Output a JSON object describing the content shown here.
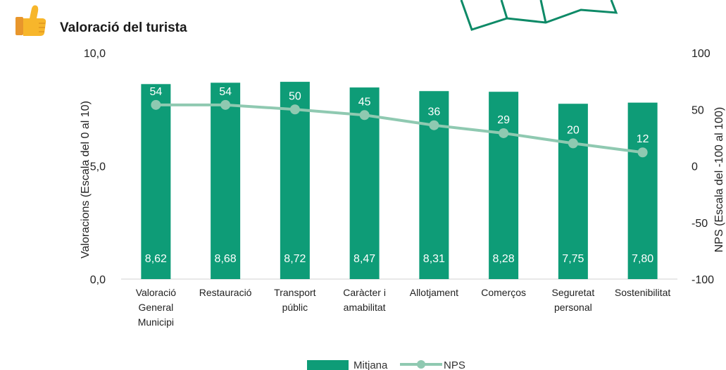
{
  "header": {
    "title": "Valoració del turista",
    "icon": "thumbs-up-icon"
  },
  "colors": {
    "bar": "#0e9c77",
    "line": "#8fc9b1",
    "text": "#222222",
    "map_icon": "#0e8a67"
  },
  "chart_data": {
    "type": "bar",
    "title": "Valoració del turista",
    "categories": [
      [
        "Valoració",
        "General",
        "Municipi"
      ],
      [
        "Restauració"
      ],
      [
        "Transport",
        "públic"
      ],
      [
        "Caràcter i",
        "amabilitat"
      ],
      [
        "Allotjament"
      ],
      [
        "Comerços"
      ],
      [
        "Seguretat",
        "personal"
      ],
      [
        "Sostenibilitat"
      ]
    ],
    "series": [
      {
        "name": "Mitjana",
        "type": "bar",
        "axis": "left",
        "values": [
          8.62,
          8.68,
          8.72,
          8.47,
          8.31,
          8.28,
          7.75,
          7.8
        ],
        "labels": [
          "8,62",
          "8,68",
          "8,72",
          "8,47",
          "8,31",
          "8,28",
          "7,75",
          "7,80"
        ]
      },
      {
        "name": "NPS",
        "type": "line",
        "axis": "right",
        "values": [
          54,
          54,
          50,
          45,
          36,
          29,
          20,
          12
        ],
        "labels": [
          "54",
          "54",
          "50",
          "45",
          "36",
          "29",
          "20",
          "12"
        ]
      }
    ],
    "y_left": {
      "label": "Valoracions (Escala  del 0 al 10)",
      "range": [
        0,
        10
      ],
      "ticks": [
        0,
        5,
        10
      ],
      "tick_labels": [
        "0,0",
        "5,0",
        "10,0"
      ]
    },
    "y_right": {
      "label": "NPS (Escala  del -100 al 100)",
      "range": [
        -100,
        100
      ],
      "ticks": [
        -100,
        -50,
        0,
        50,
        100
      ],
      "tick_labels": [
        "-100",
        "-50",
        "0",
        "50",
        "100"
      ]
    },
    "legend": {
      "position": "bottom",
      "items": [
        "Mitjana",
        "NPS"
      ]
    },
    "grid": false
  }
}
